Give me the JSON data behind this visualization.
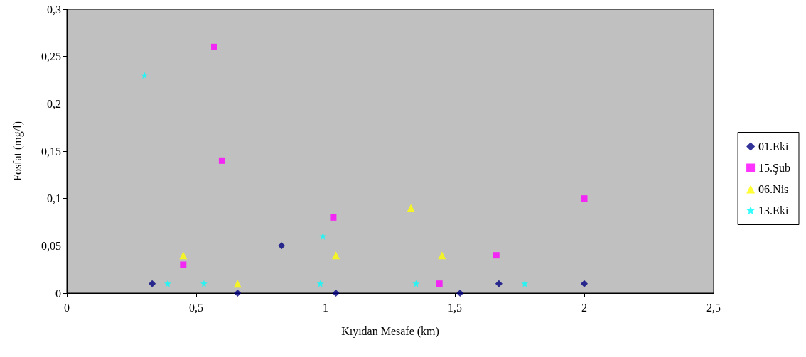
{
  "chart_data": {
    "type": "scatter",
    "xlabel": "Kıyıdan Mesafe (km)",
    "ylabel": "Fosfat (mg/l)",
    "xlim": [
      0,
      2.5
    ],
    "xticks": [
      0,
      {
        "value": 0.5,
        "label": "0,5"
      },
      1,
      {
        "value": 1.5,
        "label": "1,5"
      },
      2,
      {
        "value": 2.5,
        "label": "2,5"
      }
    ],
    "ylim": [
      0,
      0.3
    ],
    "yticks": [
      0,
      {
        "value": 0.05,
        "label": "0,05"
      },
      {
        "value": 0.1,
        "label": "0,1"
      },
      {
        "value": 0.15,
        "label": "0,15"
      },
      {
        "value": 0.2,
        "label": "0,2"
      },
      {
        "value": 0.25,
        "label": "0,25"
      },
      {
        "value": 0.3,
        "label": "0,3"
      }
    ],
    "grid": false,
    "legend": "right",
    "series": [
      {
        "name": "01.Eki",
        "color": "#000080",
        "marker": "diamond",
        "x": [
          0.33,
          0.66,
          0.83,
          1.04,
          1.52,
          1.67,
          2.0
        ],
        "values": [
          0.01,
          0,
          0.05,
          0,
          0,
          0.01,
          0.01
        ]
      },
      {
        "name": "15.Şub",
        "color": "#ff00ff",
        "marker": "square",
        "x": [
          0.57,
          0.6,
          0.45,
          1.03,
          1.44,
          1.66,
          2.0
        ],
        "values": [
          0.26,
          0.14,
          0.03,
          0.08,
          0.01,
          0.04,
          0.1
        ]
      },
      {
        "name": "06.Nis",
        "color": "#ffff00",
        "marker": "triangle",
        "x": [
          0.45,
          0.66,
          1.04,
          1.33,
          1.45
        ],
        "values": [
          0.04,
          0.01,
          0.04,
          0.09,
          0.04
        ]
      },
      {
        "name": "13.Eki",
        "color": "#00ffff",
        "marker": "star",
        "x": [
          0.3,
          0.39,
          0.53,
          0.99,
          0.98,
          1.35,
          1.77
        ],
        "values": [
          0.23,
          0.01,
          0.01,
          0.06,
          0.01,
          0.01,
          0.01
        ]
      }
    ]
  }
}
